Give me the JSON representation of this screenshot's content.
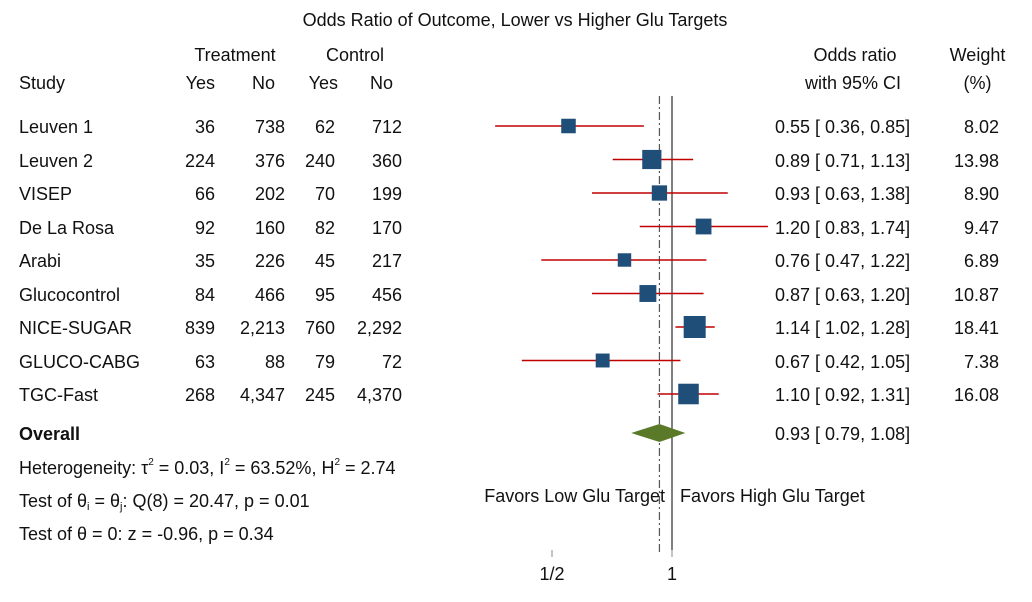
{
  "title": "Odds Ratio of Outcome, Lower vs Higher  Glu Targets",
  "headers": {
    "treatment": "Treatment",
    "control": "Control",
    "study": "Study",
    "yes": "Yes",
    "no": "No",
    "or_line1": "Odds ratio",
    "or_line2": "with 95% CI",
    "weight_line1": "Weight",
    "weight_line2": "(%)"
  },
  "studies": [
    {
      "name": "Leuven 1",
      "t_yes": "36",
      "t_no": "738",
      "c_yes": "62",
      "c_no": "712",
      "ci_text": "0.55 [ 0.36,  0.85]",
      "weight_text": "8.02"
    },
    {
      "name": "Leuven 2",
      "t_yes": "224",
      "t_no": "376",
      "c_yes": "240",
      "c_no": "360",
      "ci_text": "0.89 [ 0.71,  1.13]",
      "weight_text": "13.98"
    },
    {
      "name": "VISEP",
      "t_yes": "66",
      "t_no": "202",
      "c_yes": "70",
      "c_no": "199",
      "ci_text": "0.93 [ 0.63,  1.38]",
      "weight_text": "8.90"
    },
    {
      "name": "De La Rosa",
      "t_yes": "92",
      "t_no": "160",
      "c_yes": "82",
      "c_no": "170",
      "ci_text": "1.20 [ 0.83,  1.74]",
      "weight_text": "9.47"
    },
    {
      "name": "Arabi",
      "t_yes": "35",
      "t_no": "226",
      "c_yes": "45",
      "c_no": "217",
      "ci_text": "0.76 [ 0.47,  1.22]",
      "weight_text": "6.89"
    },
    {
      "name": "Glucocontrol",
      "t_yes": "84",
      "t_no": "466",
      "c_yes": "95",
      "c_no": "456",
      "ci_text": "0.87 [ 0.63,  1.20]",
      "weight_text": "10.87"
    },
    {
      "name": "NICE-SUGAR",
      "t_yes": "839",
      "t_no": "2,213",
      "c_yes": "760",
      "c_no": "2,292",
      "ci_text": "1.14 [ 1.02,  1.28]",
      "weight_text": "18.41"
    },
    {
      "name": "GLUCO-CABG",
      "t_yes": "63",
      "t_no": "88",
      "c_yes": "79",
      "c_no": "72",
      "ci_text": "0.67 [ 0.42,  1.05]",
      "weight_text": "7.38"
    },
    {
      "name": "TGC-Fast",
      "t_yes": "268",
      "t_no": "4,347",
      "c_yes": "245",
      "c_no": "4,370",
      "ci_text": "1.10 [ 0.92,  1.31]",
      "weight_text": "16.08"
    }
  ],
  "overall": {
    "label": "Overall",
    "ci_text": "0.93 [ 0.79,  1.08]"
  },
  "heterogeneity": {
    "prefix": "Heterogeneity: τ",
    "tau_exp": "2",
    "tau_val": " = 0.03, I",
    "i_exp": "2",
    "i_val": " = 63.52%, H",
    "h_exp": "2",
    "h_val": " = 2.74"
  },
  "test_equal": {
    "a": "Test of θ",
    "sub_i": "i",
    "b": " = θ",
    "sub_j": "j",
    "c": ": Q(8) = 20.47, p = 0.01"
  },
  "test_zero": "Test of θ = 0: z = -0.96, p = 0.34",
  "favors_low": "Favors Low Glu Target",
  "favors_high": "Favors High Glu Target",
  "colors": {
    "marker": "#1f4e79",
    "ci_line": "#c00000",
    "diamond": "#5a7a2a",
    "axis": "#000000",
    "ref_line": "#555555"
  },
  "chart_data": {
    "type": "forest",
    "x_scale": "log",
    "x_ticks": [
      {
        "value": 0.5,
        "label": "1/2"
      },
      {
        "value": 1,
        "label": "1"
      }
    ],
    "null_value": 1,
    "overall_reference": 0.93,
    "series": [
      {
        "label": "Leuven 1",
        "or": 0.55,
        "lo": 0.36,
        "hi": 0.85,
        "weight": 8.02
      },
      {
        "label": "Leuven 2",
        "or": 0.89,
        "lo": 0.71,
        "hi": 1.13,
        "weight": 13.98
      },
      {
        "label": "VISEP",
        "or": 0.93,
        "lo": 0.63,
        "hi": 1.38,
        "weight": 8.9
      },
      {
        "label": "De La Rosa",
        "or": 1.2,
        "lo": 0.83,
        "hi": 1.74,
        "weight": 9.47
      },
      {
        "label": "Arabi",
        "or": 0.76,
        "lo": 0.47,
        "hi": 1.22,
        "weight": 6.89
      },
      {
        "label": "Glucocontrol",
        "or": 0.87,
        "lo": 0.63,
        "hi": 1.2,
        "weight": 10.87
      },
      {
        "label": "NICE-SUGAR",
        "or": 1.14,
        "lo": 1.02,
        "hi": 1.28,
        "weight": 18.41
      },
      {
        "label": "GLUCO-CABG",
        "or": 0.67,
        "lo": 0.42,
        "hi": 1.05,
        "weight": 7.38
      },
      {
        "label": "TGC-Fast",
        "or": 1.1,
        "lo": 0.92,
        "hi": 1.31,
        "weight": 16.08
      }
    ],
    "overall": {
      "label": "Overall",
      "or": 0.93,
      "lo": 0.79,
      "hi": 1.08
    }
  }
}
